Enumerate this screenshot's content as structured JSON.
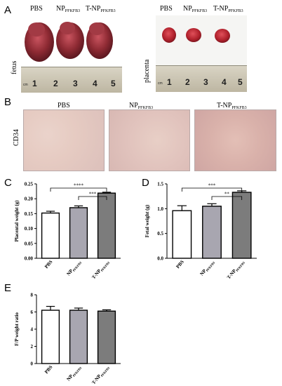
{
  "panel_letters": {
    "a": "A",
    "b": "B",
    "c": "C",
    "d": "D",
    "e": "E"
  },
  "panelA": {
    "fetus_groups": [
      "PBS",
      "NP",
      "T-NP"
    ],
    "placenta_groups": [
      "PBS",
      "NP",
      "T-NP"
    ],
    "subscript": "PFKFB3",
    "fetus_label": "fetus",
    "placenta_label": "placenta",
    "ruler_numbers": [
      "1",
      "2",
      "3",
      "4",
      "5"
    ],
    "ruler_unit": "cm"
  },
  "panelB": {
    "groups": [
      "PBS",
      "NP",
      "T-NP"
    ],
    "subscript": "PFKFB3",
    "row_label": "CD34"
  },
  "colors": {
    "pbs": "#ffffff",
    "np": "#a8a6b0",
    "tnp": "#7c7c7c",
    "axis": "#000000"
  },
  "chart_data": [
    {
      "type": "bar",
      "id": "C",
      "categories": [
        "PBS",
        "NP",
        "T-NP"
      ],
      "category_subscripts": [
        "",
        "PFKFB3",
        "PFKFB3"
      ],
      "values": [
        0.152,
        0.17,
        0.219
      ],
      "errors": [
        0.006,
        0.006,
        0.003
      ],
      "ylabel": "Placental weight (g)",
      "ylim": [
        0,
        0.25
      ],
      "yticks": [
        "0.00",
        "0.05",
        "0.10",
        "0.15",
        "0.20",
        "0.25"
      ],
      "yticks_values": [
        0,
        0.05,
        0.1,
        0.15,
        0.2,
        0.25
      ],
      "significance": [
        {
          "from": 0,
          "to": 2,
          "label": "****"
        },
        {
          "from": 1,
          "to": 2,
          "label": "***"
        }
      ]
    },
    {
      "type": "bar",
      "id": "D",
      "categories": [
        "PBS",
        "NP",
        "T-NP"
      ],
      "category_subscripts": [
        "",
        "PFKFB3",
        "PFKFB3"
      ],
      "values": [
        0.96,
        1.05,
        1.33
      ],
      "errors": [
        0.1,
        0.05,
        0.03
      ],
      "ylabel": "Fetal weight (g)",
      "ylim": [
        0,
        1.5
      ],
      "yticks": [
        "0.0",
        "0.5",
        "1.0",
        "1.5"
      ],
      "yticks_values": [
        0,
        0.5,
        1.0,
        1.5
      ],
      "significance": [
        {
          "from": 0,
          "to": 2,
          "label": "***"
        },
        {
          "from": 1,
          "to": 2,
          "label": "**"
        }
      ]
    },
    {
      "type": "bar",
      "id": "E",
      "categories": [
        "PBS",
        "NP",
        "T-NP"
      ],
      "category_subscripts": [
        "",
        "PFKFB3",
        "PFKFB3"
      ],
      "values": [
        6.2,
        6.2,
        6.1
      ],
      "errors": [
        0.45,
        0.25,
        0.15
      ],
      "ylabel": "F/P weight ratio",
      "ylim": [
        0,
        8
      ],
      "yticks": [
        "0",
        "2",
        "4",
        "6",
        "8"
      ],
      "yticks_values": [
        0,
        2,
        4,
        6,
        8
      ],
      "significance": []
    }
  ]
}
